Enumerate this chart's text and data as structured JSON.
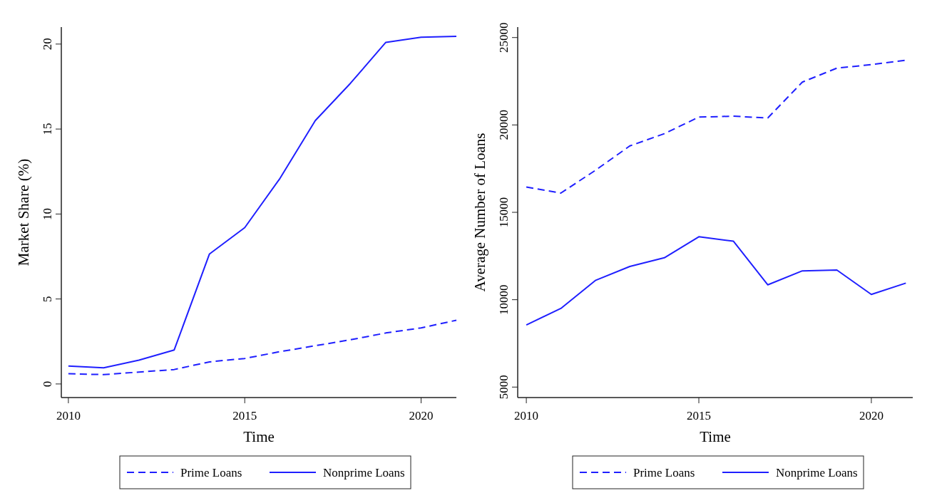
{
  "chart_data": [
    {
      "type": "line",
      "xlabel": "Time",
      "ylabel": "Market Share (%)",
      "x": [
        2010,
        2011,
        2012,
        2013,
        2014,
        2015,
        2016,
        2017,
        2018,
        2019,
        2020,
        2021
      ],
      "xlim": [
        2009.8,
        2021
      ],
      "xticks": [
        2010,
        2015,
        2020
      ],
      "ylim": [
        -0.8,
        21
      ],
      "yticks": [
        0,
        5,
        10,
        15,
        20
      ],
      "grid": false,
      "legend": "bottom",
      "series": [
        {
          "name": "Prime Loans",
          "color": "#1f1fff",
          "line_style": "dashed",
          "values": [
            0.6,
            0.55,
            0.7,
            0.85,
            1.3,
            1.5,
            1.9,
            2.25,
            2.6,
            3.0,
            3.3,
            3.75
          ]
        },
        {
          "name": "Nonprime Loans",
          "color": "#1f1fff",
          "line_style": "solid",
          "values": [
            1.05,
            0.95,
            1.4,
            2.0,
            7.65,
            9.2,
            12.1,
            15.5,
            17.7,
            20.1,
            20.4,
            20.45
          ]
        }
      ]
    },
    {
      "type": "line",
      "xlabel": "Time",
      "ylabel": "Average Number of Loans",
      "x": [
        2010,
        2011,
        2012,
        2013,
        2014,
        2015,
        2016,
        2017,
        2018,
        2019,
        2020,
        2021
      ],
      "xlim": [
        2009.75,
        2021.2
      ],
      "xticks": [
        2010,
        2015,
        2020
      ],
      "ylim": [
        4400,
        25600
      ],
      "yticks": [
        5000,
        10000,
        15000,
        20000,
        25000
      ],
      "grid": false,
      "legend": "bottom",
      "series": [
        {
          "name": "Prime Loans",
          "color": "#1f1fff",
          "line_style": "dashed",
          "values": [
            16450,
            16100,
            17400,
            18800,
            19500,
            20450,
            20500,
            20400,
            22450,
            23250,
            23450,
            23700
          ]
        },
        {
          "name": "Nonprime Loans",
          "color": "#1f1fff",
          "line_style": "solid",
          "values": [
            8550,
            9500,
            11100,
            11900,
            12400,
            13600,
            13350,
            10850,
            11650,
            11700,
            10300,
            10950
          ]
        }
      ]
    }
  ]
}
